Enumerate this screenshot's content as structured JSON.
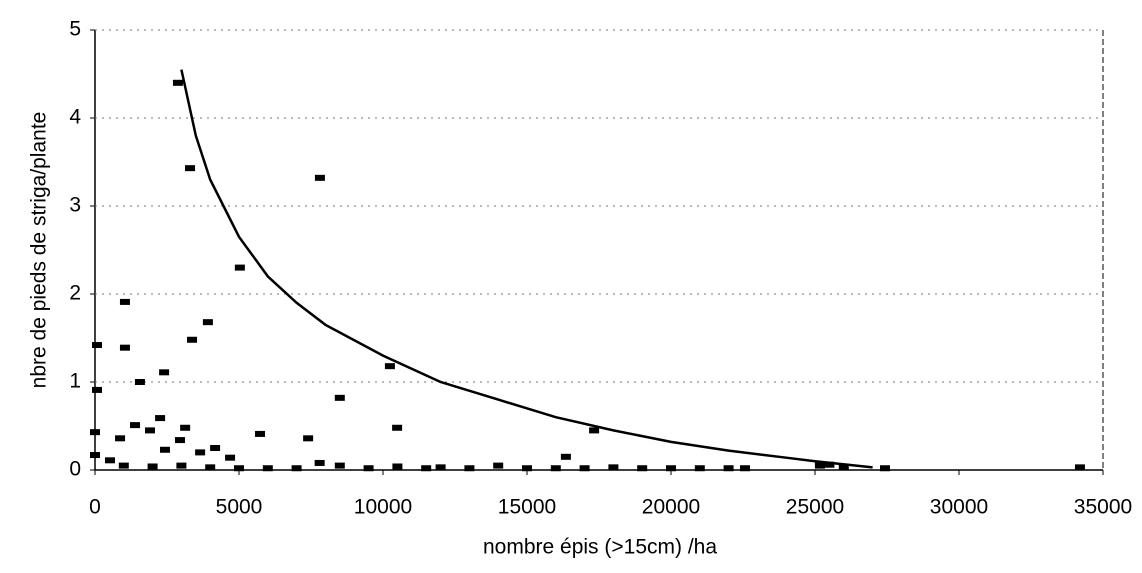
{
  "chart_data": {
    "type": "scatter",
    "x_label": "nombre épis (>15cm) /ha",
    "y_label": "nbre de pieds de striga/plante",
    "xlim": [
      0,
      35000
    ],
    "xticks": [
      0,
      5000,
      10000,
      15000,
      20000,
      25000,
      30000,
      35000
    ],
    "ylim": [
      0,
      5
    ],
    "yticks": [
      0,
      1,
      2,
      3,
      4,
      5
    ],
    "grid": true,
    "series": [
      {
        "kind": "points",
        "color": "#000000",
        "x": [
          70,
          70,
          1040,
          1040,
          1560,
          2400,
          2260,
          7810,
          2880,
          3300,
          3370,
          3920,
          5030,
          10240,
          8500,
          10490,
          5730,
          7400,
          16350,
          17330,
          0,
          870,
          1390,
          1910,
          2430,
          2950,
          3130,
          3650,
          4170,
          4690,
          0,
          520,
          1000,
          2000,
          3000,
          4000,
          5000,
          6000,
          7000,
          7800,
          8500,
          9500,
          10500,
          11500,
          12000,
          13000,
          14000,
          15000,
          16000,
          17000,
          18000,
          19000,
          20000,
          21000,
          22000,
          22570,
          25170,
          25500,
          26000,
          27430,
          34200
        ],
        "values": [
          1.42,
          0.91,
          1.91,
          1.39,
          1.0,
          1.11,
          0.59,
          3.32,
          4.4,
          3.43,
          1.48,
          1.68,
          2.3,
          1.18,
          0.82,
          0.48,
          0.41,
          0.36,
          0.15,
          0.45,
          0.43,
          0.36,
          0.51,
          0.45,
          0.23,
          0.34,
          0.48,
          0.2,
          0.25,
          0.14,
          0.17,
          0.11,
          0.05,
          0.04,
          0.05,
          0.03,
          0.02,
          0.02,
          0.02,
          0.08,
          0.05,
          0.02,
          0.04,
          0.02,
          0.03,
          0.02,
          0.05,
          0.02,
          0.02,
          0.02,
          0.03,
          0.02,
          0.02,
          0.02,
          0.02,
          0.02,
          0.05,
          0.06,
          0.04,
          0.02,
          0.03
        ]
      },
      {
        "kind": "curve",
        "color": "#000000",
        "x": [
          3000,
          3500,
          4000,
          5000,
          6000,
          7000,
          8000,
          10000,
          12000,
          14000,
          16000,
          18000,
          20000,
          22000,
          24000,
          25000,
          27000
        ],
        "values": [
          4.55,
          3.8,
          3.3,
          2.65,
          2.2,
          1.9,
          1.65,
          1.3,
          1.0,
          0.8,
          0.6,
          0.45,
          0.32,
          0.22,
          0.14,
          0.1,
          0.03
        ]
      }
    ]
  }
}
